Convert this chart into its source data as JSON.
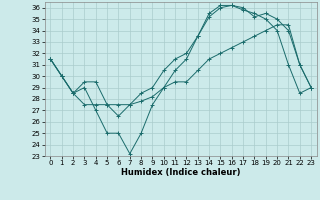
{
  "xlabel": "Humidex (Indice chaleur)",
  "bg_color": "#cceaea",
  "grid_color": "#aacccc",
  "line_color": "#1a6b6b",
  "xlim": [
    -0.5,
    23.5
  ],
  "ylim": [
    23,
    36.5
  ],
  "xticks": [
    0,
    1,
    2,
    3,
    4,
    5,
    6,
    7,
    8,
    9,
    10,
    11,
    12,
    13,
    14,
    15,
    16,
    17,
    18,
    19,
    20,
    21,
    22,
    23
  ],
  "yticks": [
    23,
    24,
    25,
    26,
    27,
    28,
    29,
    30,
    31,
    32,
    33,
    34,
    35,
    36
  ],
  "line1_y": [
    31.5,
    30.0,
    28.5,
    27.5,
    27.5,
    27.5,
    27.5,
    27.5,
    27.8,
    28.2,
    29.0,
    29.5,
    29.5,
    30.5,
    31.5,
    32.0,
    32.5,
    33.0,
    33.5,
    34.0,
    34.5,
    34.5,
    31.0,
    29.0
  ],
  "line2_y": [
    31.5,
    30.0,
    28.5,
    29.5,
    29.5,
    27.5,
    26.5,
    27.5,
    28.5,
    29.0,
    30.5,
    31.5,
    32.0,
    33.5,
    35.2,
    36.0,
    36.2,
    36.0,
    35.2,
    35.5,
    35.0,
    34.0,
    31.0,
    29.0
  ],
  "line3_y": [
    31.5,
    30.0,
    28.5,
    29.0,
    27.0,
    25.0,
    25.0,
    23.2,
    25.0,
    27.5,
    29.0,
    30.5,
    31.5,
    33.5,
    35.5,
    36.2,
    36.2,
    35.8,
    35.5,
    35.0,
    34.0,
    31.0,
    28.5,
    29.0
  ]
}
